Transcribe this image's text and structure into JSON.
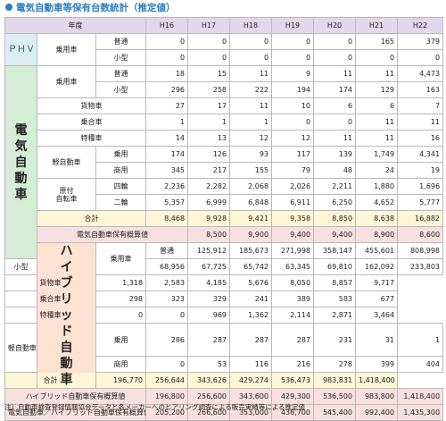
{
  "title": "電気自動車等保有台数統計（推定値）",
  "header": {
    "year_label": "年度",
    "years": [
      "H16",
      "H17",
      "H18",
      "H19",
      "H20",
      "H21",
      "H22"
    ]
  },
  "phv": {
    "category": "ＰＨＶ",
    "subcategory": "乗用車",
    "rows": [
      {
        "label": "普通",
        "values": [
          "0",
          "0",
          "0",
          "0",
          "0",
          "165",
          "379"
        ]
      },
      {
        "label": "小型",
        "values": [
          "0",
          "0",
          "0",
          "0",
          "0",
          "0",
          "0"
        ]
      }
    ]
  },
  "ev": {
    "category": "電気自動車",
    "passenger_label": "乗用車",
    "passenger_rows": [
      {
        "label": "普通",
        "values": [
          "18",
          "15",
          "11",
          "9",
          "11",
          "11",
          "4,473"
        ]
      },
      {
        "label": "小型",
        "values": [
          "296",
          "258",
          "222",
          "194",
          "174",
          "129",
          "163"
        ]
      }
    ],
    "cargo": {
      "label": "貨物車",
      "values": [
        "27",
        "17",
        "11",
        "10",
        "6",
        "6",
        "7"
      ]
    },
    "bus": {
      "label": "乗合車",
      "values": [
        "1",
        "1",
        "1",
        "0",
        "0",
        "11",
        "11"
      ]
    },
    "special": {
      "label": "特種車",
      "values": [
        "14",
        "13",
        "12",
        "12",
        "11",
        "11",
        "16"
      ]
    },
    "kei_label": "軽自動車",
    "kei_rows": [
      {
        "label": "乗用",
        "values": [
          "174",
          "126",
          "93",
          "117",
          "139",
          "1,749",
          "4,341"
        ]
      },
      {
        "label": "商用",
        "values": [
          "345",
          "217",
          "155",
          "79",
          "48",
          "24",
          "19"
        ]
      }
    ],
    "moped_label_1": "原付",
    "moped_label_2": "自転車",
    "moped_rows": [
      {
        "label": "四輪",
        "values": [
          "2,236",
          "2,282",
          "2,068",
          "2,026",
          "2,211",
          "1,880",
          "1,696"
        ]
      },
      {
        "label": "二輪",
        "values": [
          "5,357",
          "6,999",
          "6,848",
          "6,911",
          "6,250",
          "4,652",
          "5,777"
        ]
      }
    ],
    "total": {
      "label": "合計",
      "values": [
        "8,468",
        "9,928",
        "9,421",
        "9,358",
        "8,850",
        "8,638",
        "16,882"
      ]
    },
    "estimate": {
      "label": "電気自動車保有概算値",
      "values": [
        "8,500",
        "9,900",
        "9,400",
        "9,400",
        "8,900",
        "8,600",
        "16,900"
      ]
    }
  },
  "hv": {
    "category": "ハイブリッド自動車",
    "passenger_label": "乗用車",
    "passenger_rows": [
      {
        "label": "普通",
        "values": [
          "125,912",
          "185,673",
          "271,998",
          "358,147",
          "455,601",
          "808,998",
          "1,170,334"
        ]
      },
      {
        "label": "小型",
        "values": [
          "68,956",
          "67,725",
          "65,742",
          "63,345",
          "69,810",
          "162,092",
          "233,803"
        ]
      }
    ],
    "cargo": {
      "label": "貨物車",
      "values": [
        "1,318",
        "2,583",
        "4,185",
        "5,676",
        "8,050",
        "8,857",
        "9,717"
      ]
    },
    "bus": {
      "label": "乗合車",
      "values": [
        "298",
        "323",
        "329",
        "241",
        "389",
        "583",
        "677"
      ]
    },
    "special": {
      "label": "特種車",
      "values": [
        "0",
        "0",
        "969",
        "1,362",
        "2,114",
        "2,871",
        "3,464"
      ]
    },
    "kei_label": "軽自動車",
    "kei_rows": [
      {
        "label": "乗用",
        "values": [
          "286",
          "287",
          "287",
          "287",
          "231",
          "31",
          "1"
        ]
      },
      {
        "label": "商用",
        "values": [
          "0",
          "53",
          "116",
          "216",
          "278",
          "399",
          "404"
        ]
      }
    ],
    "total": {
      "label": "合計",
      "values": [
        "196,770",
        "256,644",
        "343,626",
        "429,274",
        "536,473",
        "983,831",
        "1,418,400"
      ]
    },
    "estimate": {
      "label": "ハイブリッド自動車保有概算値",
      "values": [
        "196,800",
        "256,600",
        "343,600",
        "429,300",
        "536,500",
        "983,800",
        "1,418,400"
      ]
    }
  },
  "combined": {
    "label": "電気自動車／ハイブリッド自動車保有概算値",
    "values": [
      "205,200",
      "266,600",
      "353,000",
      "438,700",
      "545,400",
      "992,400",
      "1,435,300"
    ]
  },
  "note": "注）自動車検査登録情報協会データと各メーカーへのヒアリング調査による販売実績等による推定値"
}
